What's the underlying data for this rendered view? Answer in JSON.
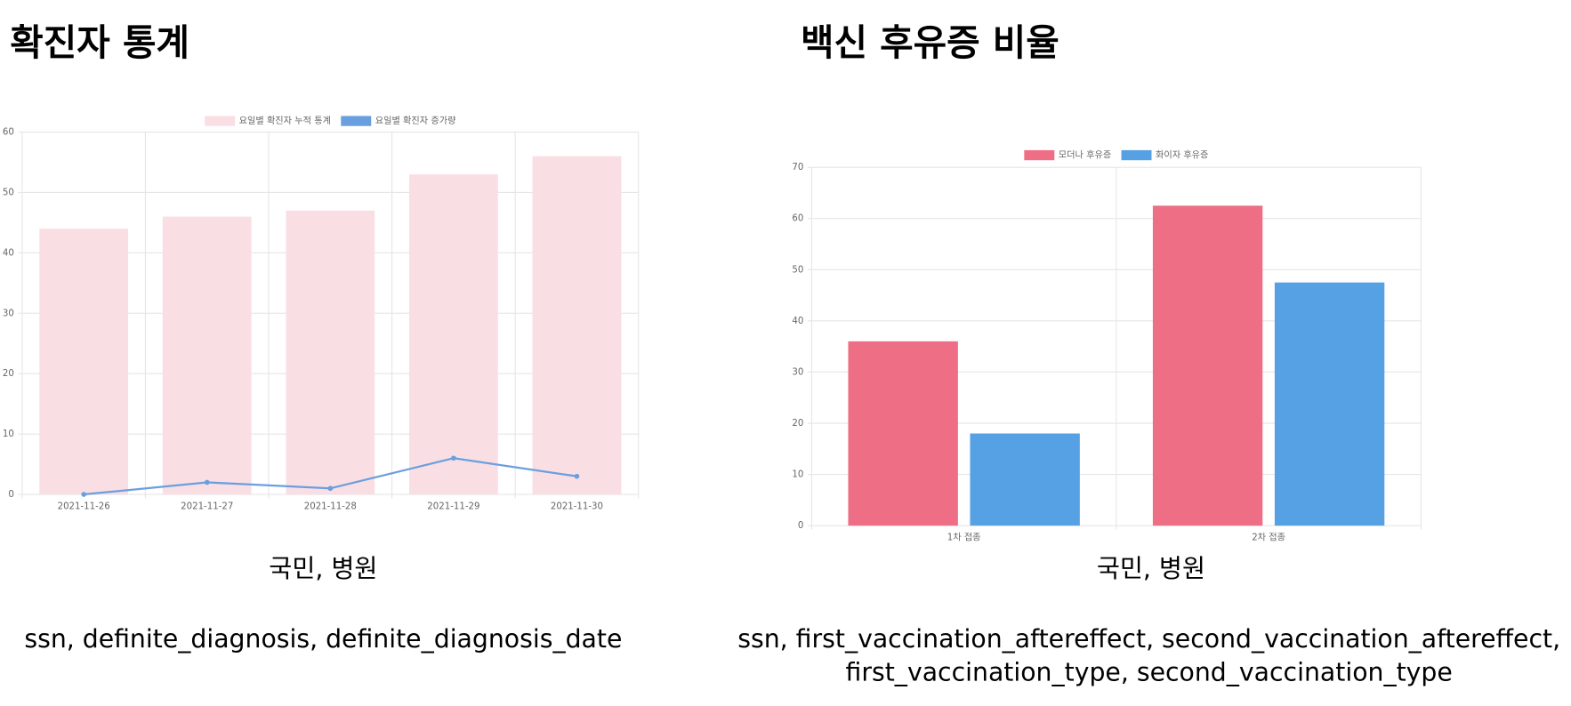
{
  "panels": [
    {
      "heading": "확진자 통계",
      "caption": "국민, 병원",
      "fields": [
        "ssn, definite_diagnosis, definite_diagnosis_date"
      ]
    },
    {
      "heading": "백신 후유증 비율",
      "caption": "국민, 병원",
      "fields": [
        "ssn, first_vaccination_aftereffect, second_vaccination_aftereffect,",
        "first_vaccination_type, second_vaccination_type"
      ]
    }
  ],
  "chart_data": [
    {
      "type": "bar",
      "categories": [
        "2021-11-26",
        "2021-11-27",
        "2021-11-28",
        "2021-11-29",
        "2021-11-30"
      ],
      "series": [
        {
          "name": "요일별 확진자 누적 통계",
          "type": "bar",
          "color": "#f9dfe4",
          "values": [
            44,
            46,
            47,
            53,
            56
          ]
        },
        {
          "name": "요일별 확진자 증가량",
          "type": "line",
          "color": "#6a9fdf",
          "values": [
            0,
            2,
            1,
            6,
            3
          ]
        }
      ],
      "ylim": [
        0,
        60
      ],
      "yticks": [
        0,
        10,
        20,
        30,
        40,
        50,
        60
      ],
      "grid": true,
      "legend": "top"
    },
    {
      "type": "bar",
      "categories": [
        "1차 접종",
        "2차 접종"
      ],
      "series": [
        {
          "name": "모더나 후유증",
          "color": "#ed6e85",
          "values": [
            36,
            62.5
          ]
        },
        {
          "name": "화이자 후유증",
          "color": "#56a1e4",
          "values": [
            18,
            47.5
          ]
        }
      ],
      "ylim": [
        0,
        70
      ],
      "yticks": [
        0,
        10,
        20,
        30,
        40,
        50,
        60,
        70
      ],
      "grid": true,
      "legend": "top"
    }
  ]
}
